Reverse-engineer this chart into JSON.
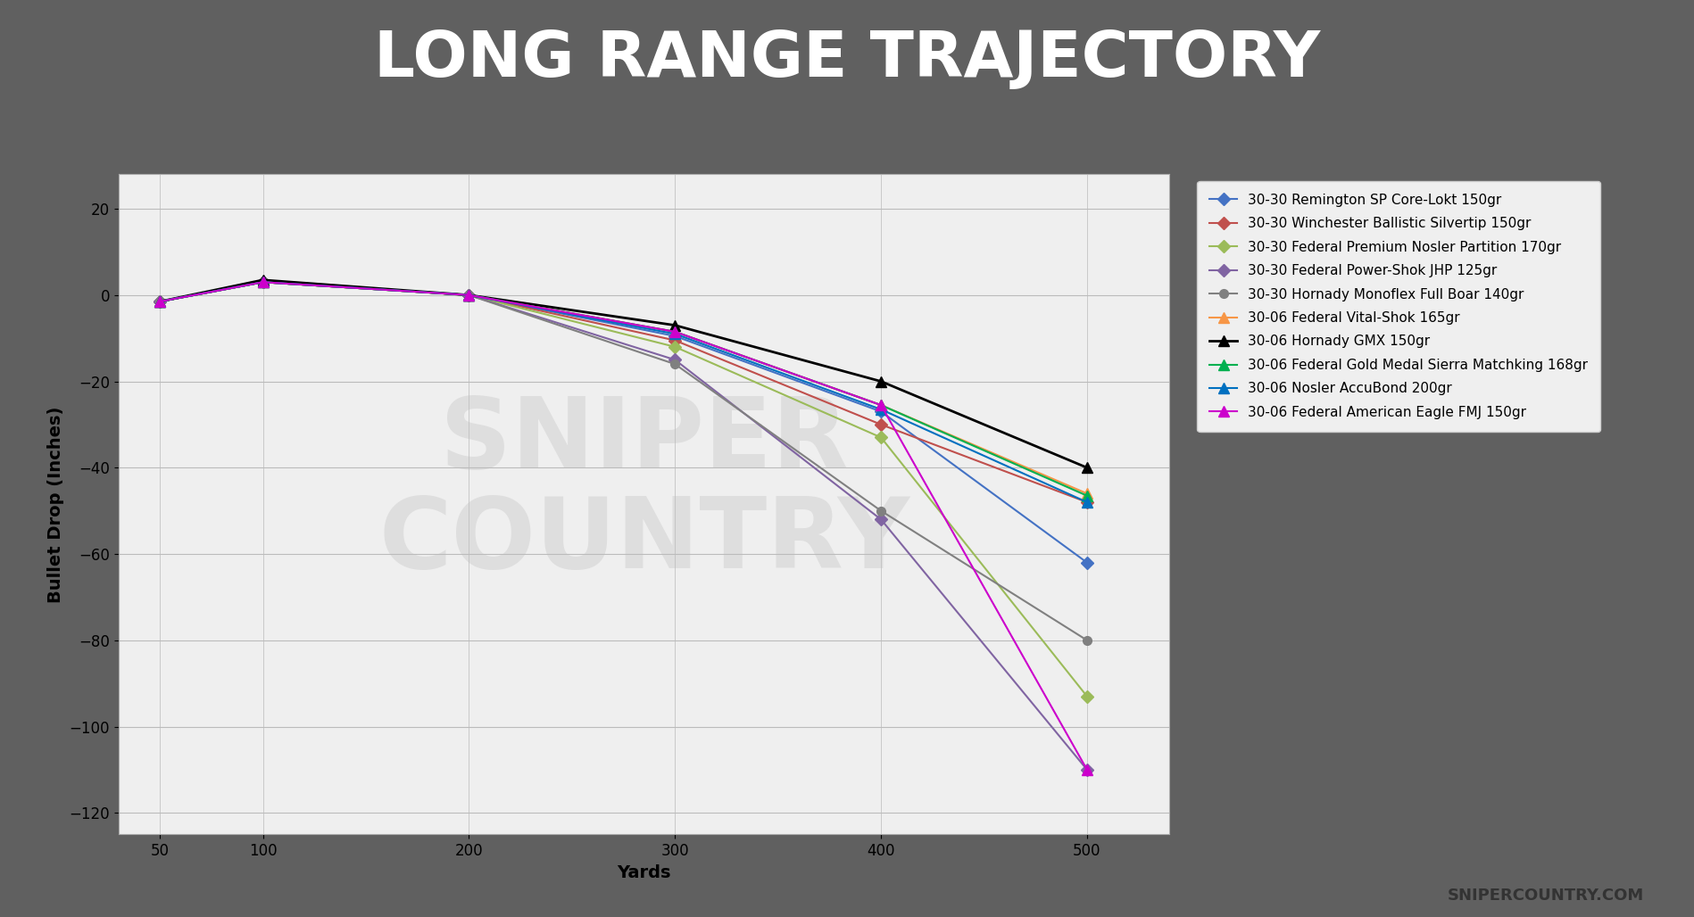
{
  "title": "LONG RANGE TRAJECTORY",
  "title_bg_color": "#606060",
  "title_stripe_color": "#e05c5c",
  "title_text_color": "#ffffff",
  "xlabel": "Yards",
  "ylabel": "Bullet Drop (Inches)",
  "plot_bg_color": "#efefef",
  "xlim": [
    30,
    540
  ],
  "ylim": [
    -125,
    28
  ],
  "xticks": [
    50,
    100,
    200,
    300,
    400,
    500
  ],
  "yticks": [
    20,
    0,
    -20,
    -40,
    -60,
    -80,
    -100,
    -120
  ],
  "series": [
    {
      "label": "30-30 Remington SP Core-Lokt 150gr",
      "color": "#4472c4",
      "marker": "D",
      "markersize": 7,
      "linewidth": 1.5,
      "xs": [
        50,
        100,
        200,
        300,
        400,
        500
      ],
      "ys": [
        -1.5,
        3.0,
        0.0,
        -9.5,
        -27.0,
        -62.0
      ]
    },
    {
      "label": "30-30 Winchester Ballistic Silvertip 150gr",
      "color": "#c0504d",
      "marker": "D",
      "markersize": 7,
      "linewidth": 1.5,
      "xs": [
        50,
        100,
        200,
        300,
        400,
        500
      ],
      "ys": [
        -1.5,
        3.0,
        0.0,
        -10.5,
        -30.0,
        -48.0
      ]
    },
    {
      "label": "30-30 Federal Premium Nosler Partition 170gr",
      "color": "#9bbb59",
      "marker": "D",
      "markersize": 7,
      "linewidth": 1.5,
      "xs": [
        50,
        100,
        200,
        300,
        400,
        500
      ],
      "ys": [
        -1.5,
        3.0,
        0.0,
        -12.0,
        -33.0,
        -93.0
      ]
    },
    {
      "label": "30-30 Federal Power-Shok JHP 125gr",
      "color": "#8064a2",
      "marker": "D",
      "markersize": 7,
      "linewidth": 1.5,
      "xs": [
        50,
        100,
        200,
        300,
        400,
        500
      ],
      "ys": [
        -1.5,
        3.0,
        0.0,
        -15.0,
        -52.0,
        -110.0
      ]
    },
    {
      "label": "30-30 Hornady Monoflex Full Boar 140gr",
      "color": "#808080",
      "marker": "o",
      "markersize": 7,
      "linewidth": 1.5,
      "xs": [
        50,
        100,
        200,
        300,
        400,
        500
      ],
      "ys": [
        -1.5,
        3.0,
        0.0,
        -16.0,
        -50.0,
        -80.0
      ]
    },
    {
      "label": "30-06 Federal Vital-Shok 165gr",
      "color": "#f79646",
      "marker": "^",
      "markersize": 8,
      "linewidth": 1.5,
      "xs": [
        50,
        100,
        200,
        300,
        400,
        500
      ],
      "ys": [
        -1.5,
        3.0,
        0.0,
        -8.5,
        -25.5,
        -46.0
      ]
    },
    {
      "label": "30-06 Hornady GMX 150gr",
      "color": "#000000",
      "marker": "^",
      "markersize": 8,
      "linewidth": 2.0,
      "xs": [
        50,
        100,
        200,
        300,
        400,
        500
      ],
      "ys": [
        -1.5,
        3.5,
        0.0,
        -7.0,
        -20.0,
        -40.0
      ]
    },
    {
      "label": "30-06 Federal Gold Medal Sierra Matchking 168gr",
      "color": "#00b050",
      "marker": "^",
      "markersize": 8,
      "linewidth": 1.5,
      "xs": [
        50,
        100,
        200,
        300,
        400,
        500
      ],
      "ys": [
        -1.5,
        3.0,
        0.0,
        -8.5,
        -25.5,
        -46.5
      ]
    },
    {
      "label": "30-06 Nosler AccuBond 200gr",
      "color": "#0070c0",
      "marker": "^",
      "markersize": 8,
      "linewidth": 1.5,
      "xs": [
        50,
        100,
        200,
        300,
        400,
        500
      ],
      "ys": [
        -1.5,
        3.0,
        0.0,
        -9.0,
        -26.5,
        -48.0
      ]
    },
    {
      "label": "30-06 Federal American Eagle FMJ 150gr",
      "color": "#cc00cc",
      "marker": "^",
      "markersize": 8,
      "linewidth": 1.5,
      "xs": [
        50,
        100,
        200,
        300,
        400,
        500
      ],
      "ys": [
        -1.5,
        3.0,
        0.0,
        -8.5,
        -25.5,
        -110.0
      ]
    }
  ],
  "snipercountry_text": "SNIPERCOUNTRY.COM",
  "legend_fontsize": 11,
  "axis_label_fontsize": 14,
  "tick_fontsize": 12,
  "title_fontsize": 52
}
